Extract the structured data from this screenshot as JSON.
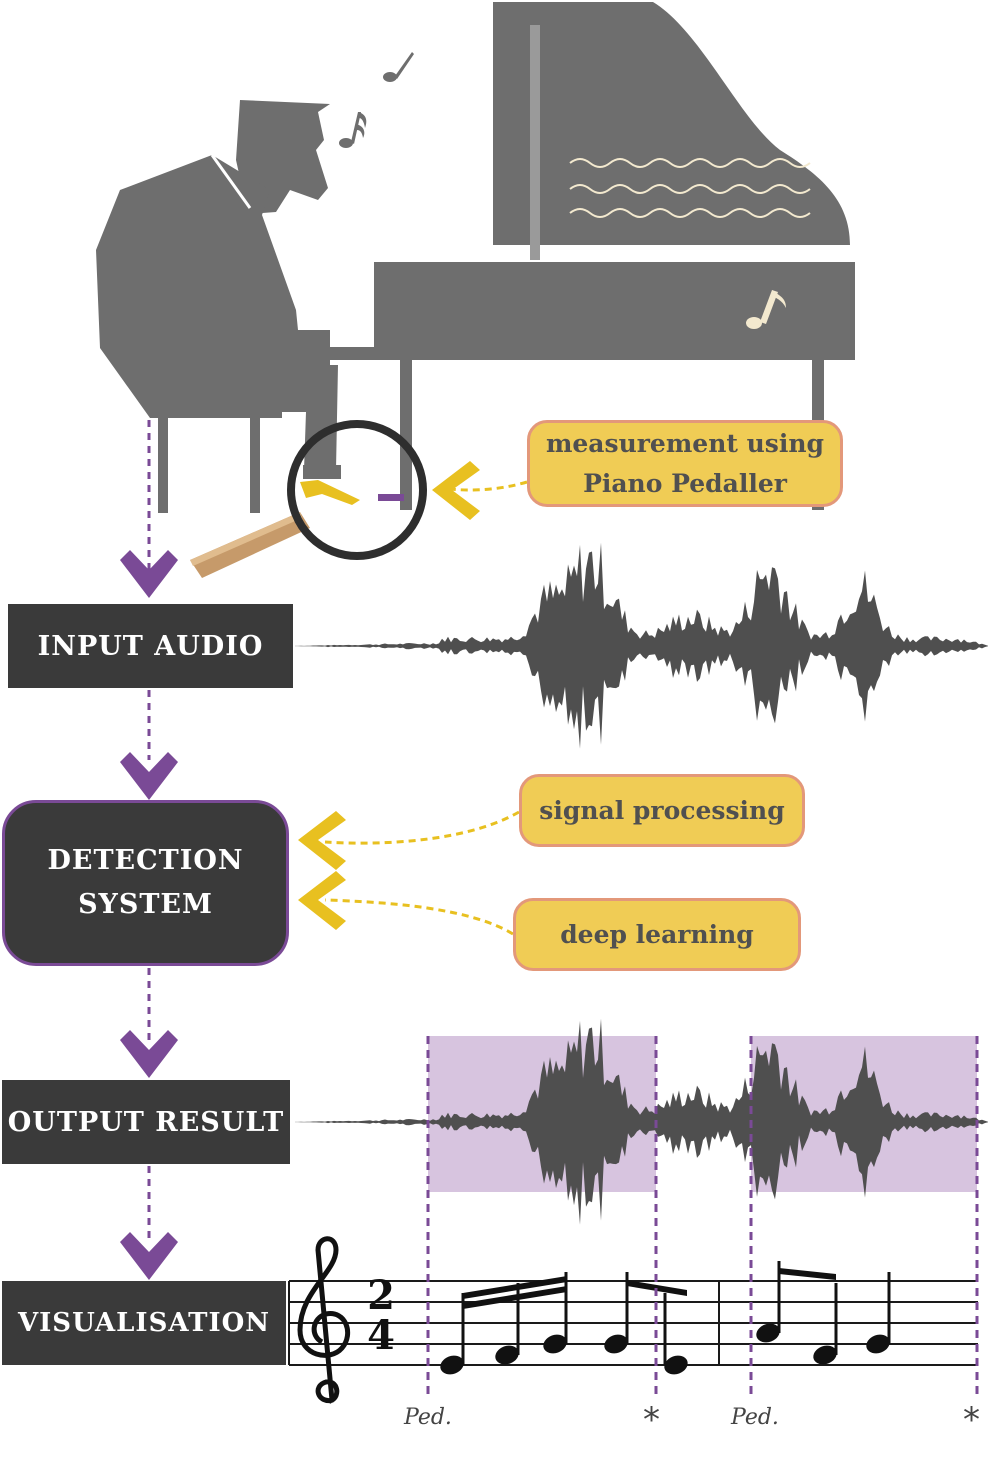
{
  "flow": {
    "input_audio": "INPUT AUDIO",
    "detection_line1": "DETECTION",
    "detection_line2": "SYSTEM",
    "output_result": "OUTPUT RESULT",
    "visualisation": "VISUALISATION"
  },
  "callouts": {
    "measurement_line1": "measurement using",
    "measurement_line2": "Piano Pedaller",
    "signal_processing": "signal processing",
    "deep_learning": "deep learning"
  },
  "score": {
    "time_signature_top": "2",
    "time_signature_bottom": "4",
    "pedal_marks": [
      "Ped.",
      "Ped."
    ],
    "pedal_release": "*"
  },
  "icons": [
    "pianist-silhouette",
    "grand-piano",
    "music-note-icon",
    "magnifier-icon",
    "waveform",
    "treble-clef-icon"
  ],
  "colors": {
    "box_dark": "#3a3a3a",
    "accent_purple": "#7a4a96",
    "highlight_lavender": "#d7c4df",
    "callout_yellow": "#f0cc55",
    "callout_border": "#e3987a",
    "silhouette_gray": "#6e6e6e"
  }
}
